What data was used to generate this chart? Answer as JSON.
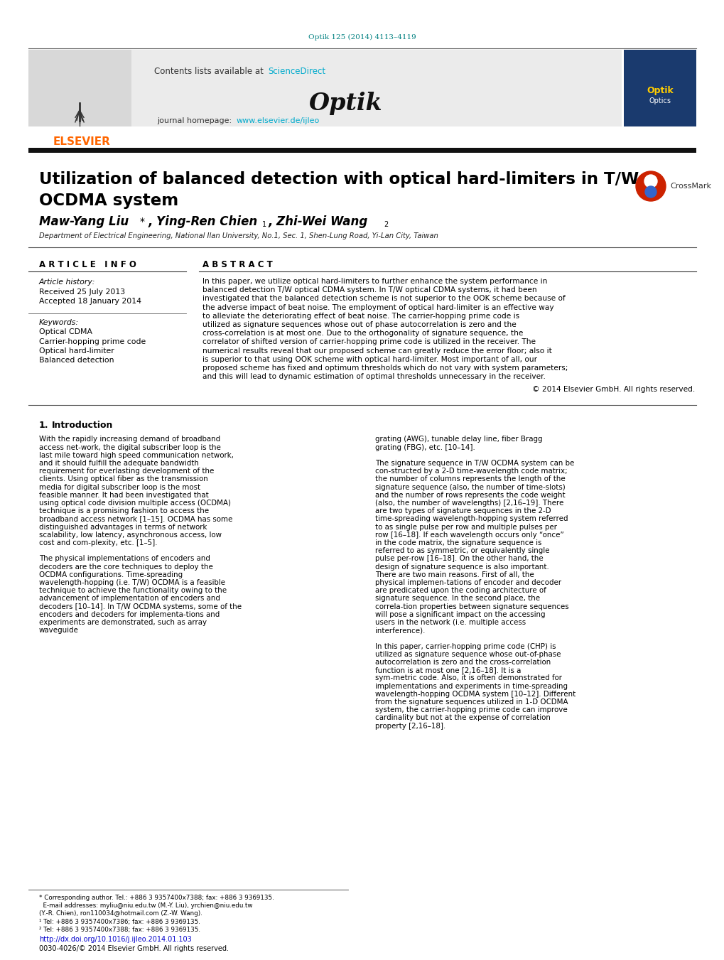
{
  "page_width": 10.2,
  "page_height": 13.51,
  "bg_color": "#ffffff",
  "journal_ref": "Optik 125 (2014) 4113–4119",
  "journal_ref_color": "#008080",
  "header_bg": "#e8e8e8",
  "header_text": "Optik",
  "contents_text": "Contents lists available at ",
  "sciencedirect_text": "ScienceDirect",
  "sciencedirect_color": "#00aacc",
  "homepage_text": "journal homepage: ",
  "homepage_url": "www.elsevier.de/ijleo",
  "homepage_url_color": "#00aacc",
  "elsevier_color": "#ff6600",
  "separator_color": "#000000",
  "dark_bar_color": "#1a1a1a",
  "paper_title_line1": "Utilization of balanced detection with optical hard-limiters in T/W",
  "paper_title_line2": "OCDMA system",
  "title_font_size": 18,
  "affiliation": "Department of Electrical Engineering, National Ilan University, No.1, Sec. 1, Shen-Lung Road, Yi-Lan City, Taiwan",
  "article_info_header": "A R T I C L E   I N F O",
  "abstract_header": "A B S T R A C T",
  "article_history_label": "Article history:",
  "received": "Received 25 July 2013",
  "accepted": "Accepted 18 January 2014",
  "keywords_label": "Keywords:",
  "keywords": [
    "Optical CDMA",
    "Carrier-hopping prime code",
    "Optical hard-limiter",
    "Balanced detection"
  ],
  "abstract_text": "In this paper, we utilize optical hard-limiters to further enhance the system performance in balanced detection T/W optical CDMA system. In T/W optical CDMA systems, it had been investigated that the balanced detection scheme is not superior to the OOK scheme because of the adverse impact of beat noise. The employment of optical hard-limiter is an effective way to alleviate the deteriorating effect of beat noise. The carrier-hopping prime code is utilized as signature sequences whose out of phase autocorrelation is zero and the cross-correlation is at most one. Due to the orthogonality of signature sequence, the correlator of shifted version of carrier-hopping prime code is utilized in the receiver. The numerical results reveal that our proposed scheme can greatly reduce the error floor; also it is superior to that using OOK scheme with optical hard-limiter. Most important of all, our proposed scheme has fixed and optimum thresholds which do not vary with system parameters; and this will lead to dynamic estimation of optimal thresholds unnecessary in the receiver.",
  "copyright": "© 2014 Elsevier GmbH. All rights reserved.",
  "intro_col1_text": "   With the rapidly increasing demand of broadband access net-work, the digital subscriber loop is the last mile toward high speed communication network, and it should fulfill the adequate bandwidth requirement for everlasting development of the clients. Using optical fiber as the transmission media for digital subscriber loop is the most feasible manner. It had been investigated that using optical code division multiple access (OCDMA) technique is a promising fashion to access the broadband access network [1–15]. OCDMA has some distinguished advantages in terms of network scalability, low latency, asynchronous access, low cost and com-plexity, etc. [1–5].\n   The physical implementations of encoders and decoders are the core techniques to deploy the OCDMA configurations. Time-spreading wavelength-hopping (i.e. T/W) OCDMA is a feasible technique to achieve the functionality owing to the advancement of implementation of encoders and decoders [10–14]. In T/W OCDMA systems, some of the encoders and decoders for implementa-tions and experiments are demonstrated, such as array waveguide",
  "intro_col2_text": "grating (AWG), tunable delay line, fiber Bragg grating (FBG), etc. [10–14].\n   The signature sequence in T/W OCDMA system can be con-structed by a 2-D time-wavelength code matrix; the number of columns represents the length of the signature sequence (also, the number of time-slots) and the number of rows represents the code weight (also, the number of wavelengths) [2,16–19]. There are two types of signature sequences in the 2-D time-spreading wavelength-hopping system referred to as single pulse per row and multiple pulses per row [16–18]. If each wavelength occurs only “once” in the code matrix, the signature sequence is referred to as symmetric, or equivalently single pulse per-row [16–18]. On the other hand, the design of signature sequence is also important. There are two main reasons. First of all, the physical implemen-tations of encoder and decoder are predicated upon the coding architecture of signature sequence. In the second place, the correla-tion properties between signature sequences will pose a significant impact on the accessing users in the network (i.e. multiple access interference).\n   In this paper, carrier-hopping prime code (CHP) is utilized as signature sequence whose out-of-phase autocorrelation is zero and the cross-correlation function is at most one [2,16–18]. It is a sym-metric code. Also, it is often demonstrated for implementations and experiments in time-spreading wavelength-hopping OCDMA system [10–12]. Different from the signature sequences utilized in 1-D OCDMA system, the carrier-hopping prime code can improve cardinality but not at the expense of correlation property [2,16–18].",
  "footnote_corresponding": "* Corresponding author. Tel.: +886 3 9357400x7388; fax: +886 3 9369135.",
  "footnote_email": "  E-mail addresses: myliu@niu.edu.tw (M.-Y. Liu), yrchien@niu.edu.tw",
  "footnote_email2": "(Y.-R. Chien), ron110034@hotmail.com (Z.-W. Wang).",
  "footnote_1": "¹ Tel: +886 3 9357400x7386; fax: +886 3 9369135.",
  "footnote_2": "² Tel: +886 3 9357400x7388; fax: +886 3 9369135.",
  "doi_text": "http://dx.doi.org/10.1016/j.ijleo.2014.01.103",
  "doi_color": "#0000cc",
  "copyright_bottom": "0030-4026/© 2014 Elsevier GmbH. All rights reserved."
}
